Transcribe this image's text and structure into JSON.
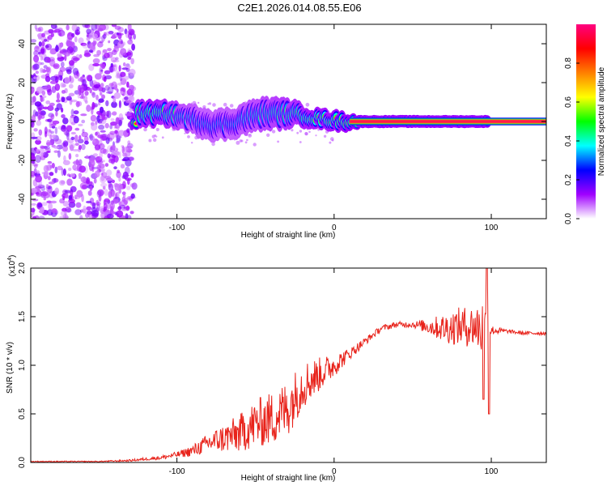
{
  "title": "C2E1.2026.014.08.55.E06",
  "chart_data": [
    {
      "type": "heatmap",
      "xlabel": "Height of straight line (km)",
      "ylabel": "Frequency (Hz)",
      "xlim": [
        -193,
        135
      ],
      "ylim": [
        -50,
        50
      ],
      "xticks": [
        -100,
        0,
        100
      ],
      "xtick_labels": [
        "-100",
        "0",
        "100"
      ],
      "yticks": [
        -40,
        -20,
        0,
        20,
        40
      ],
      "ytick_labels": [
        "-40",
        "-20",
        "0",
        "20",
        "40"
      ],
      "noise_region_x": [
        -193,
        -127
      ],
      "ridge": [
        {
          "x": -125,
          "y": 4,
          "w": 4,
          "a": 0.7
        },
        {
          "x": -115,
          "y": 4,
          "w": 4,
          "a": 0.8
        },
        {
          "x": -105,
          "y": 4,
          "w": 4,
          "a": 0.7
        },
        {
          "x": -95,
          "y": 2,
          "w": 4,
          "a": 0.55
        },
        {
          "x": -85,
          "y": 0,
          "w": 5,
          "a": 0.5
        },
        {
          "x": -75,
          "y": -2,
          "w": 5,
          "a": 0.5
        },
        {
          "x": -65,
          "y": -1,
          "w": 5,
          "a": 0.5
        },
        {
          "x": -55,
          "y": 2,
          "w": 5,
          "a": 0.55
        },
        {
          "x": -45,
          "y": 4,
          "w": 5,
          "a": 0.6
        },
        {
          "x": -35,
          "y": 4,
          "w": 5,
          "a": 0.65
        },
        {
          "x": -25,
          "y": 4,
          "w": 4,
          "a": 0.7
        },
        {
          "x": -15,
          "y": 2,
          "w": 3,
          "a": 0.8
        },
        {
          "x": -5,
          "y": 1,
          "w": 3,
          "a": 0.8
        },
        {
          "x": 5,
          "y": 0,
          "w": 3,
          "a": 0.85
        },
        {
          "x": 15,
          "y": 0,
          "w": 2,
          "a": 0.95
        },
        {
          "x": 60,
          "y": 0,
          "w": 2,
          "a": 0.95
        },
        {
          "x": 98,
          "y": 0,
          "w": 2,
          "a": 0.95
        }
      ],
      "colorbar": {
        "label": "Normalized spectral amplitude",
        "range": [
          0,
          1
        ],
        "ticks": [
          0,
          0.2,
          0.4,
          0.6,
          0.8
        ],
        "tick_labels": [
          "0.0",
          "0.2",
          "0.4",
          "0.6",
          "0.8"
        ],
        "colors": [
          "#ffffff",
          "#a000ff",
          "#0000ff",
          "#00ffff",
          "#00ff00",
          "#ffff00",
          "#ff8000",
          "#ff0000",
          "#ff0080"
        ]
      }
    },
    {
      "type": "line",
      "xlabel": "Height of straight line (km)",
      "ylabel": "SNR (10 * v/v)",
      "y_exponent_label": "(x10",
      "y_exponent_power": "4",
      "y_exponent_close": ")",
      "xlim": [
        -193,
        135
      ],
      "ylim": [
        0,
        2
      ],
      "xticks": [
        -100,
        0,
        100
      ],
      "xtick_labels": [
        "-100",
        "0",
        "100"
      ],
      "yticks": [
        0,
        0.5,
        1.0,
        1.5,
        2.0
      ],
      "ytick_labels": [
        "0.0",
        "0.5",
        "1.0",
        "1.5",
        "2.0"
      ],
      "color": "#e8231b",
      "series_envelope": {
        "x": [
          -193,
          -150,
          -130,
          -110,
          -100,
          -90,
          -80,
          -70,
          -60,
          -50,
          -40,
          -30,
          -20,
          -10,
          0,
          10,
          20,
          30,
          40,
          50,
          60,
          70,
          80,
          90,
          95,
          100,
          110,
          120,
          135
        ],
        "mean": [
          0.01,
          0.01,
          0.02,
          0.05,
          0.08,
          0.12,
          0.2,
          0.25,
          0.3,
          0.4,
          0.45,
          0.55,
          0.8,
          0.9,
          1.0,
          1.12,
          1.25,
          1.38,
          1.42,
          1.42,
          1.4,
          1.38,
          1.4,
          1.4,
          1.38,
          1.36,
          1.35,
          1.33,
          1.33
        ],
        "noise": [
          0.005,
          0.005,
          0.01,
          0.02,
          0.03,
          0.06,
          0.1,
          0.15,
          0.2,
          0.25,
          0.28,
          0.3,
          0.25,
          0.18,
          0.12,
          0.06,
          0.04,
          0.03,
          0.03,
          0.03,
          0.08,
          0.15,
          0.2,
          0.22,
          0.35,
          0.05,
          0.02,
          0.02,
          0.02
        ]
      }
    }
  ]
}
